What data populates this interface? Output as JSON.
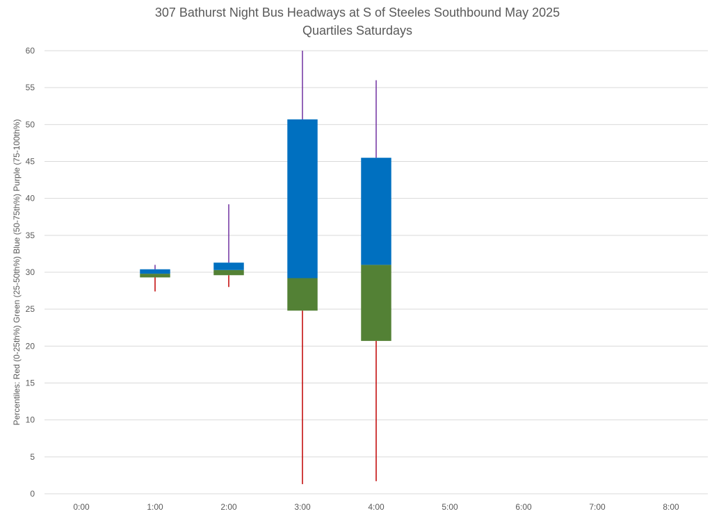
{
  "chart_data": {
    "type": "boxplot",
    "title_lines": [
      "307 Bathurst Night Bus Headways at S of Steeles Southbound May 2025",
      "Quartiles Saturdays"
    ],
    "ylabel": "Percentiles:  Red (0-25th%)  Green (25-50th%)  Blue (50-75th%)  Purple (75-100th%)",
    "ylim": [
      0,
      60
    ],
    "yticks": [
      0,
      5,
      10,
      15,
      20,
      25,
      30,
      35,
      40,
      45,
      50,
      55,
      60
    ],
    "grid": true,
    "categories": [
      "0:00",
      "1:00",
      "2:00",
      "3:00",
      "4:00",
      "5:00",
      "6:00",
      "7:00",
      "8:00"
    ],
    "boxes": [
      {
        "category": "1:00",
        "min": 27.4,
        "q1": 29.3,
        "median": 29.8,
        "q3": 30.4,
        "max": 31.0
      },
      {
        "category": "2:00",
        "min": 28.0,
        "q1": 29.6,
        "median": 30.3,
        "q3": 31.3,
        "max": 39.2
      },
      {
        "category": "3:00",
        "min": 1.3,
        "q1": 24.8,
        "median": 29.2,
        "q3": 50.7,
        "max": 60.0
      },
      {
        "category": "4:00",
        "min": 1.7,
        "q1": 20.7,
        "median": 31.0,
        "q3": 45.5,
        "max": 56.0
      }
    ],
    "colors": {
      "lower_whisker": "#c00000",
      "lower_box": "#538135",
      "upper_box": "#0070c0",
      "upper_whisker": "#7030a0"
    }
  }
}
